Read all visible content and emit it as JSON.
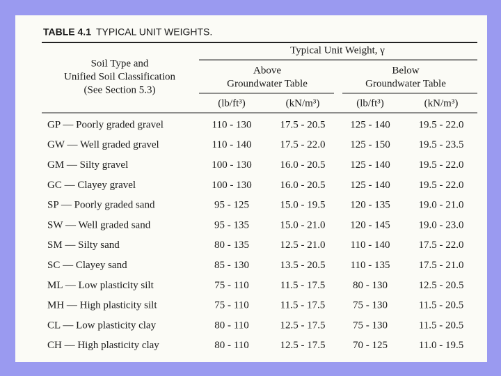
{
  "title": {
    "label": "TABLE 4.1",
    "text": "TYPICAL UNIT WEIGHTS."
  },
  "header": {
    "soil_type": [
      "Soil Type and",
      "Unified Soil Classification",
      "(See Section 5.3)"
    ],
    "group": "Typical Unit Weight, γ",
    "above": [
      "Above",
      "Groundwater Table"
    ],
    "below": [
      "Below",
      "Groundwater Table"
    ],
    "units": [
      "(lb/ft³)",
      "(kN/m³)",
      "(lb/ft³)",
      "(kN/m³)"
    ]
  },
  "table": {
    "rows": [
      [
        "GP — Poorly graded gravel",
        "110 - 130",
        "17.5 - 20.5",
        "125 - 140",
        "19.5 - 22.0"
      ],
      [
        "GW — Well graded gravel",
        "110 - 140",
        "17.5 - 22.0",
        "125 - 150",
        "19.5 - 23.5"
      ],
      [
        "GM — Silty gravel",
        "100 - 130",
        "16.0 - 20.5",
        "125 - 140",
        "19.5 - 22.0"
      ],
      [
        "GC — Clayey gravel",
        "100 - 130",
        "16.0 - 20.5",
        "125 - 140",
        "19.5 - 22.0"
      ],
      [
        "SP — Poorly graded sand",
        "95 - 125",
        "15.0 - 19.5",
        "120 - 135",
        "19.0 - 21.0"
      ],
      [
        "SW — Well graded sand",
        "95 - 135",
        "15.0 - 21.0",
        "120 - 145",
        "19.0 - 23.0"
      ],
      [
        "SM — Silty sand",
        "80 - 135",
        "12.5 - 21.0",
        "110 - 140",
        "17.5 - 22.0"
      ],
      [
        "SC — Clayey sand",
        "85 - 130",
        "13.5 - 20.5",
        "110 - 135",
        "17.5 - 21.0"
      ],
      [
        "ML — Low plasticity silt",
        "75 - 110",
        "11.5 - 17.5",
        "80 - 130",
        "12.5 - 20.5"
      ],
      [
        "MH — High plasticity silt",
        "75 - 110",
        "11.5 - 17.5",
        "75 - 130",
        "11.5 - 20.5"
      ],
      [
        "CL — Low plasticity clay",
        "80 - 110",
        "12.5 - 17.5",
        "75 - 130",
        "11.5 - 20.5"
      ],
      [
        "CH — High plasticity clay",
        "80 - 110",
        "12.5 - 17.5",
        "70 - 125",
        "11.0 - 19.5"
      ]
    ]
  }
}
